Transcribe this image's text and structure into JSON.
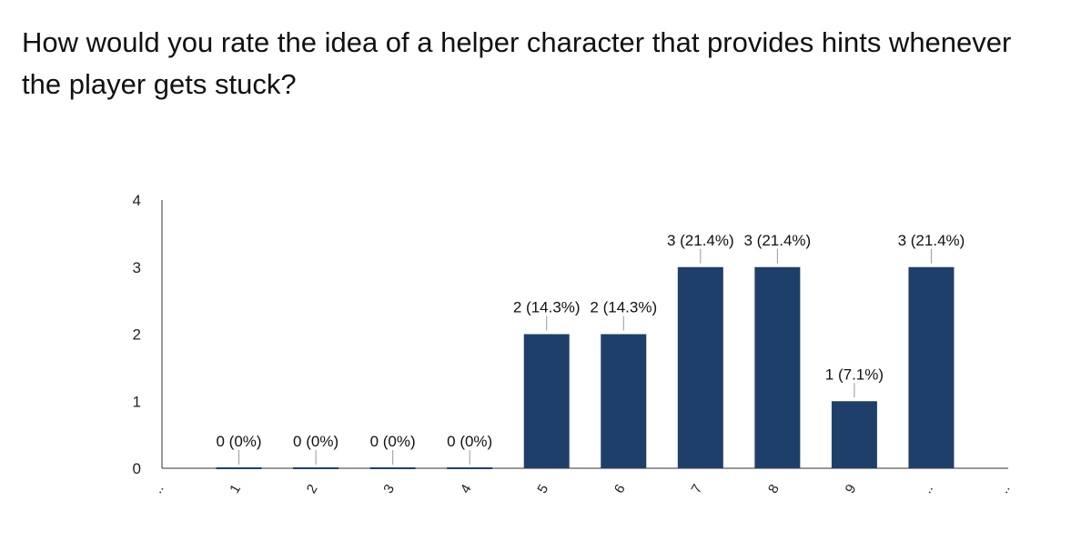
{
  "title": "How would you rate the idea of a helper character that provides hints whenever the player gets stuck?",
  "colors": {
    "bar": "#1f3f6b",
    "axis": "#333333",
    "leader": "#999999"
  },
  "chart_data": {
    "type": "bar",
    "title": "How would you rate the idea of a helper character that provides hints whenever the player gets stuck?",
    "x_ticks": [
      "..",
      "1",
      "2",
      "3",
      "4",
      "5",
      "6",
      "7",
      "8",
      "9",
      "..",
      ".."
    ],
    "categories": [
      "1",
      "2",
      "3",
      "4",
      "5",
      "6",
      "7",
      "8",
      "9",
      ".."
    ],
    "values": [
      0,
      0,
      0,
      0,
      2,
      2,
      3,
      3,
      1,
      3
    ],
    "data_labels": [
      "0 (0%)",
      "0 (0%)",
      "0 (0%)",
      "0 (0%)",
      "2 (14.3%)",
      "2 (14.3%)",
      "3 (21.4%)",
      "3 (21.4%)",
      "1 (7.1%)",
      "3 (21.4%)"
    ],
    "y_ticks": [
      "0",
      "1",
      "2",
      "3",
      "4"
    ],
    "ylim": [
      0,
      4
    ],
    "xlabel": "",
    "ylabel": "",
    "grid": false,
    "legend": "none"
  }
}
